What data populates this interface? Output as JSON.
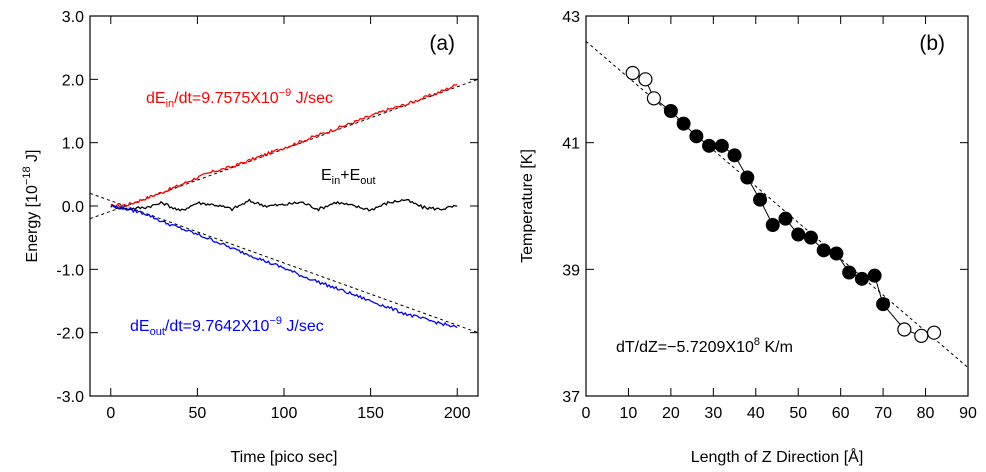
{
  "chart_data": [
    {
      "type": "line",
      "panel_label": "(a)",
      "xlabel": "Time [pico sec]",
      "ylabel_parts": {
        "main": "Energy [10",
        "exp": "−18",
        "tail": " J]"
      },
      "xlim": [
        -12,
        212
      ],
      "ylim": [
        -3.0,
        3.0
      ],
      "xticks": [
        0,
        50,
        100,
        150,
        200
      ],
      "yticks": [
        -3.0,
        -2.0,
        -1.0,
        0.0,
        1.0,
        2.0,
        3.0
      ],
      "ytick_labels": [
        "-3.0",
        "-2.0",
        "-1.0",
        "0.0",
        "1.0",
        "2.0",
        "3.0"
      ],
      "grid": false,
      "series": [
        {
          "color": "#ff0000",
          "x": [
            0,
            10,
            20,
            30,
            40,
            50,
            60,
            70,
            80,
            90,
            100,
            110,
            120,
            130,
            140,
            150,
            160,
            170,
            180,
            190,
            200
          ],
          "y": [
            0.0,
            0.02,
            0.12,
            0.22,
            0.33,
            0.45,
            0.55,
            0.62,
            0.72,
            0.82,
            0.92,
            1.02,
            1.12,
            1.22,
            1.32,
            1.42,
            1.52,
            1.6,
            1.7,
            1.8,
            1.92
          ]
        },
        {
          "color": "#000000",
          "x": [
            0,
            10,
            20,
            30,
            40,
            50,
            60,
            70,
            80,
            90,
            100,
            110,
            120,
            130,
            140,
            150,
            160,
            170,
            180,
            190,
            200
          ],
          "y": [
            0.0,
            -0.05,
            -0.02,
            0.05,
            -0.08,
            0.05,
            0.02,
            -0.05,
            0.08,
            0.0,
            0.02,
            0.06,
            -0.05,
            0.06,
            0.0,
            -0.06,
            0.05,
            0.1,
            -0.02,
            -0.05,
            0.0
          ]
        },
        {
          "color": "#0000ff",
          "x": [
            0,
            10,
            20,
            30,
            40,
            50,
            60,
            70,
            80,
            90,
            100,
            110,
            120,
            130,
            140,
            150,
            160,
            170,
            180,
            190,
            200
          ],
          "y": [
            0.0,
            -0.05,
            -0.12,
            -0.25,
            -0.35,
            -0.45,
            -0.55,
            -0.67,
            -0.77,
            -0.88,
            -0.98,
            -1.1,
            -1.2,
            -1.3,
            -1.4,
            -1.5,
            -1.6,
            -1.7,
            -1.78,
            -1.85,
            -1.92
          ]
        }
      ],
      "fit_lines": [
        {
          "x": [
            -12,
            212
          ],
          "y": [
            -0.2,
            2.0
          ]
        },
        {
          "x": [
            -12,
            212
          ],
          "y": [
            0.2,
            -2.0
          ]
        }
      ],
      "annotations": [
        {
          "color": "#ff0000",
          "a": "dE",
          "sub": "in",
          "b": "/dt=9.7575X10",
          "sup": "−9",
          "c": " J/sec"
        },
        {
          "color": "#000000",
          "a": "E",
          "sub": "in",
          "b": "+E",
          "sub2": "out",
          "c": ""
        },
        {
          "color": "#0000ff",
          "a": "dE",
          "sub": "out",
          "b": "/dt=9.7642X10",
          "sup": "−9",
          "c": " J/sec"
        }
      ]
    },
    {
      "type": "scatter",
      "panel_label": "(b)",
      "xlabel": "Length of Z Direction [Å]",
      "ylabel": "Temperature [K]",
      "xlim": [
        0,
        90
      ],
      "ylim": [
        37,
        43
      ],
      "xticks": [
        0,
        10,
        20,
        30,
        40,
        50,
        60,
        70,
        80,
        90
      ],
      "yticks": [
        37,
        39,
        41,
        43
      ],
      "grid": false,
      "open_points": {
        "x": [
          11,
          14,
          16,
          75,
          79,
          82
        ],
        "y": [
          42.1,
          42.0,
          41.7,
          38.05,
          37.95,
          38.0
        ]
      },
      "filled_points": {
        "x": [
          20,
          23,
          26,
          29,
          32,
          35,
          38,
          41,
          44,
          47,
          50,
          53,
          56,
          59,
          62,
          65,
          68,
          70
        ],
        "y": [
          41.5,
          41.3,
          41.1,
          40.95,
          40.95,
          40.8,
          40.45,
          40.1,
          39.7,
          39.8,
          39.55,
          39.5,
          39.3,
          39.25,
          38.95,
          38.85,
          38.9,
          38.45
        ]
      },
      "fit_line": {
        "x": [
          0,
          90
        ],
        "y": [
          42.6,
          37.45
        ]
      },
      "annotation": {
        "a": "dT/dZ=−5.7209X10",
        "sup": "8",
        "c": " K/m"
      }
    }
  ]
}
